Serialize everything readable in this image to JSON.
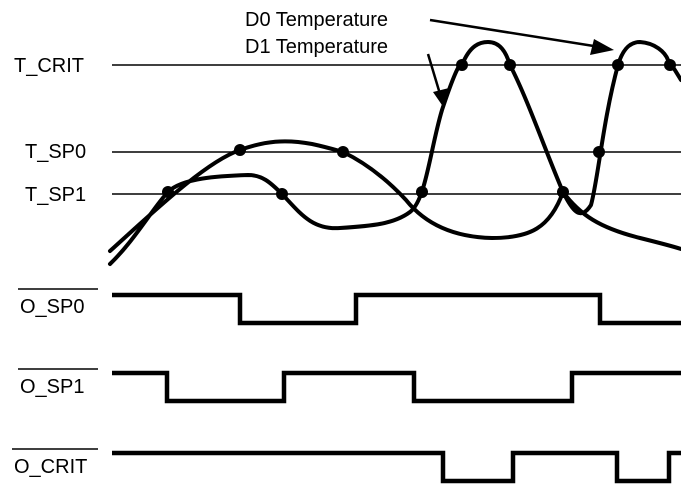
{
  "thresholds": {
    "t_crit": "T_CRIT",
    "t_sp0": "T_SP0",
    "t_sp1": "T_SP1"
  },
  "legend": {
    "d0": "D0 Temperature",
    "d1": "D1 Temperature"
  },
  "outputs": {
    "o_sp0": "O_SP0",
    "o_sp1": "O_SP1",
    "o_crit": "O_CRIT"
  }
}
